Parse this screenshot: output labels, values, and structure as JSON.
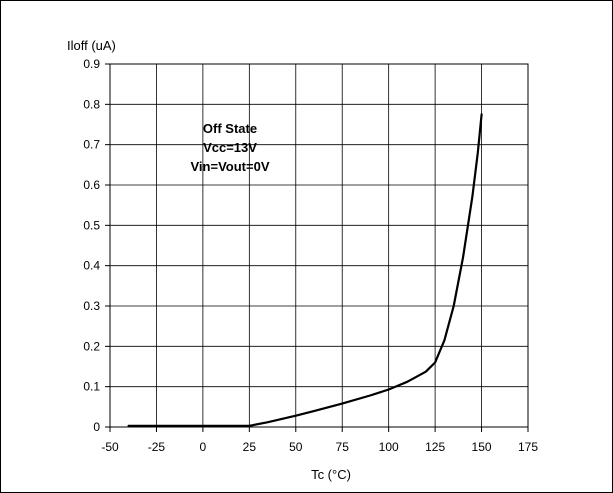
{
  "chart_data": {
    "type": "line",
    "ylabel": "Iloff (uA)",
    "xlabel": "Tc (°C)",
    "xlim": [
      -50,
      175
    ],
    "ylim": [
      0,
      0.9
    ],
    "x_ticks": [
      "-50",
      "-25",
      "0",
      "25",
      "50",
      "75",
      "100",
      "125",
      "150",
      "175"
    ],
    "y_ticks": [
      "0",
      "0.1",
      "0.2",
      "0.3",
      "0.4",
      "0.5",
      "0.6",
      "0.7",
      "0.8",
      "0.9"
    ],
    "grid": true,
    "annotation": [
      "Off State",
      "Vcc=13V",
      "Vin=Vout=0V"
    ],
    "color": "#000000",
    "series": [
      {
        "x": [
          -40,
          -25,
          0,
          25,
          35,
          50,
          60,
          75,
          90,
          100,
          110,
          120,
          125,
          130,
          135,
          140,
          145,
          148,
          150
        ],
        "y": [
          0.003,
          0.003,
          0.003,
          0.003,
          0.012,
          0.028,
          0.04,
          0.058,
          0.078,
          0.093,
          0.112,
          0.137,
          0.16,
          0.215,
          0.3,
          0.42,
          0.57,
          0.68,
          0.775
        ]
      }
    ]
  }
}
